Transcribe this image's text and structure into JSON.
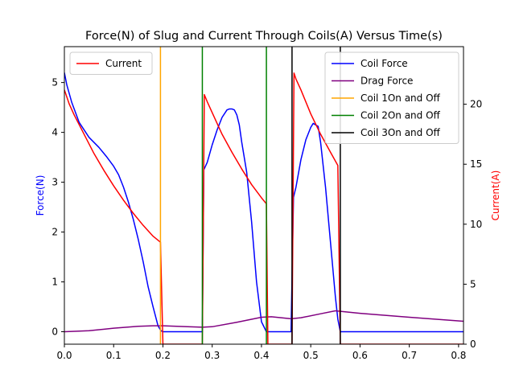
{
  "chart_data": {
    "type": "line",
    "title": "Force(N) of Slug and Current Through Coils(A) Versus Time(s)",
    "xlabel": "",
    "ylabel_left": "Force(N)",
    "ylabel_right": "Current(A)",
    "xlim": [
      0,
      0.81
    ],
    "ylim_left": [
      -0.25,
      5.72
    ],
    "ylim_right": [
      0,
      24.8
    ],
    "x_ticks": [
      0.0,
      0.1,
      0.2,
      0.3,
      0.4,
      0.5,
      0.6,
      0.7,
      0.8
    ],
    "x_tick_labels": [
      "0.0",
      "0.1",
      "0.2",
      "0.3",
      "0.4",
      "0.5",
      "0.6",
      "0.7",
      "0.8"
    ],
    "y_left_ticks": [
      0,
      1,
      2,
      3,
      4,
      5
    ],
    "y_left_tick_labels": [
      "0",
      "1",
      "2",
      "3",
      "4",
      "5"
    ],
    "y_right_ticks": [
      0,
      5,
      10,
      15,
      20
    ],
    "y_right_tick_labels": [
      "0",
      "5",
      "10",
      "15",
      "20"
    ],
    "colors": {
      "coil_force": "#0000ff",
      "drag_force": "#800080",
      "current": "#ff0000",
      "coil1": "#ffa500",
      "coil2": "#008000",
      "coil3": "#000000",
      "left_label": "#0000ff",
      "right_label": "#ff0000"
    },
    "legend_left": {
      "placement": "upper-left",
      "entries": [
        {
          "name": "Current",
          "color": "#ff0000"
        }
      ]
    },
    "legend_right": {
      "placement": "upper-right",
      "entries": [
        {
          "name": "Coil Force",
          "color": "#0000ff"
        },
        {
          "name": "Drag Force",
          "color": "#800080"
        },
        {
          "name": "Coil 1On and Off",
          "color": "#ffa500"
        },
        {
          "name": "Coil 2On and Off",
          "color": "#008000"
        },
        {
          "name": "Coil 3On and Off",
          "color": "#000000"
        }
      ]
    },
    "series": [
      {
        "name": "Coil Force",
        "axis": "left",
        "color": "#0000ff",
        "x": [
          0,
          0.005,
          0.015,
          0.03,
          0.05,
          0.07,
          0.085,
          0.1,
          0.11,
          0.12,
          0.13,
          0.14,
          0.15,
          0.16,
          0.17,
          0.18,
          0.19,
          0.196,
          0.2,
          0.28,
          0.283,
          0.29,
          0.3,
          0.31,
          0.32,
          0.33,
          0.335,
          0.34,
          0.345,
          0.35,
          0.355,
          0.36,
          0.37,
          0.38,
          0.39,
          0.4,
          0.41,
          0.413,
          0.46,
          0.465,
          0.47,
          0.48,
          0.49,
          0.5,
          0.505,
          0.51,
          0.515,
          0.52,
          0.53,
          0.54,
          0.55,
          0.555,
          0.56,
          0.81
        ],
        "y": [
          5.2,
          4.95,
          4.6,
          4.2,
          3.9,
          3.7,
          3.52,
          3.32,
          3.15,
          2.9,
          2.6,
          2.25,
          1.85,
          1.4,
          0.9,
          0.5,
          0.12,
          0.02,
          0.0,
          0.0,
          3.25,
          3.4,
          3.75,
          4.05,
          4.3,
          4.45,
          4.47,
          4.47,
          4.45,
          4.35,
          4.15,
          3.8,
          3.2,
          2.2,
          1.0,
          0.2,
          0.0,
          0.0,
          0.0,
          2.7,
          2.9,
          3.45,
          3.85,
          4.1,
          4.18,
          4.15,
          4.12,
          3.8,
          2.9,
          1.8,
          0.7,
          0.25,
          0.0,
          0.0
        ]
      },
      {
        "name": "Drag Force",
        "axis": "left",
        "color": "#800080",
        "x": [
          0,
          0.05,
          0.1,
          0.15,
          0.18,
          0.2,
          0.25,
          0.28,
          0.3,
          0.35,
          0.4,
          0.42,
          0.46,
          0.48,
          0.52,
          0.55,
          0.56,
          0.6,
          0.7,
          0.81
        ],
        "y": [
          0.0,
          0.02,
          0.07,
          0.11,
          0.12,
          0.12,
          0.1,
          0.09,
          0.1,
          0.19,
          0.29,
          0.3,
          0.26,
          0.28,
          0.36,
          0.42,
          0.41,
          0.37,
          0.29,
          0.21
        ]
      },
      {
        "name": "Current",
        "axis": "right",
        "color": "#ff0000",
        "x": [
          0,
          0.01,
          0.02,
          0.04,
          0.06,
          0.08,
          0.1,
          0.12,
          0.14,
          0.16,
          0.18,
          0.195,
          0.2,
          0.28,
          0.284,
          0.29,
          0.3,
          0.32,
          0.34,
          0.36,
          0.38,
          0.4,
          0.41,
          0.413,
          0.462,
          0.466,
          0.47,
          0.48,
          0.5,
          0.52,
          0.54,
          0.555,
          0.56,
          0.81
        ],
        "y": [
          21.2,
          20.0,
          19.1,
          17.5,
          15.9,
          14.5,
          13.2,
          12.0,
          10.9,
          9.9,
          9.0,
          8.5,
          0.0,
          0.0,
          20.8,
          20.2,
          19.3,
          17.5,
          16.0,
          14.6,
          13.3,
          12.2,
          11.7,
          0.0,
          0.0,
          22.6,
          22.1,
          21.2,
          19.2,
          17.5,
          16.0,
          14.9,
          0.0,
          0.0
        ]
      }
    ],
    "vlines": [
      {
        "name": "Coil 1On and Off",
        "x": 0.195,
        "color": "#ffa500"
      },
      {
        "name": "Coil 2On and Off",
        "x": 0.28,
        "color": "#008000"
      },
      {
        "name": "Coil 2On and Off",
        "x": 0.41,
        "color": "#008000"
      },
      {
        "name": "Coil 3On and Off",
        "x": 0.462,
        "color": "#000000"
      },
      {
        "name": "Coil 3On and Off",
        "x": 0.56,
        "color": "#000000"
      }
    ]
  }
}
